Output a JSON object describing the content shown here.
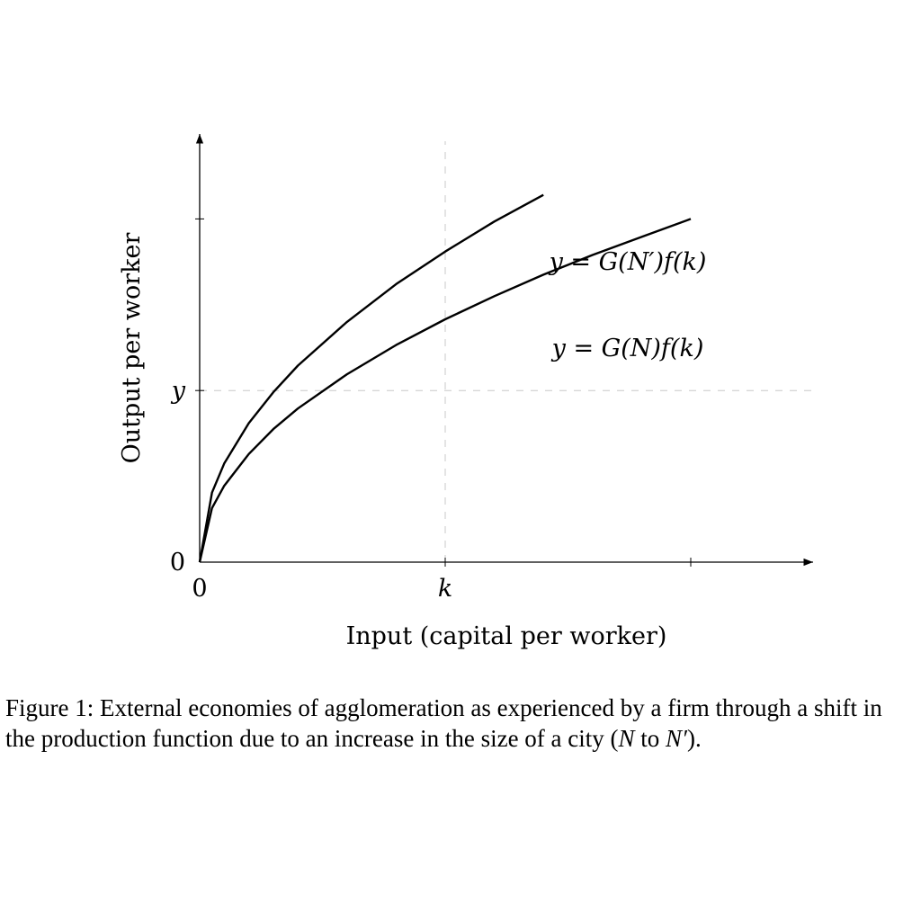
{
  "chart_data": {
    "type": "line",
    "title": "",
    "xlabel": "Input (capital per worker)",
    "ylabel": "Output per worker",
    "xlim": [
      0,
      12.5
    ],
    "ylim": [
      0,
      5
    ],
    "x_ticks": [
      {
        "value": 0,
        "label": "0"
      },
      {
        "value": 5,
        "label": "k"
      },
      {
        "value": 10,
        "label": ""
      }
    ],
    "y_ticks": [
      {
        "value": 0,
        "label": "0"
      },
      {
        "value": 2,
        "label": "y"
      },
      {
        "value": 4,
        "label": ""
      }
    ],
    "reference_lines": [
      {
        "axis": "x",
        "value": 5,
        "style": "dashed"
      },
      {
        "axis": "y",
        "value": 2,
        "style": "dashed"
      }
    ],
    "grid": false,
    "series": [
      {
        "name": "y = G(N′)f(k)",
        "x": [
          0,
          0.25,
          0.5,
          1,
          1.5,
          2,
          3,
          4,
          5,
          6,
          7
        ],
        "y": [
          0,
          0.81,
          1.15,
          1.62,
          1.98,
          2.29,
          2.8,
          3.24,
          3.62,
          3.97,
          4.28
        ]
      },
      {
        "name": "y = G(N)f(k)",
        "x": [
          0,
          0.25,
          0.5,
          1,
          1.5,
          2,
          3,
          4,
          5,
          6,
          7,
          8,
          9,
          10
        ],
        "y": [
          0,
          0.63,
          0.89,
          1.26,
          1.55,
          1.79,
          2.19,
          2.53,
          2.83,
          3.1,
          3.35,
          3.58,
          3.79,
          4.0
        ]
      }
    ],
    "annotations": [
      {
        "text": "y = G(N′)f(k)",
        "series": 0
      },
      {
        "text": "y = G(N)f(k)",
        "series": 1
      }
    ]
  },
  "caption": {
    "label": "Figure 1:",
    "text_before": "External economies of agglomeration as experienced by a firm through a shift in the production function due to an increase in the size of a city (",
    "from": "N",
    "middle": " to ",
    "to": "N′",
    "after": ")."
  }
}
